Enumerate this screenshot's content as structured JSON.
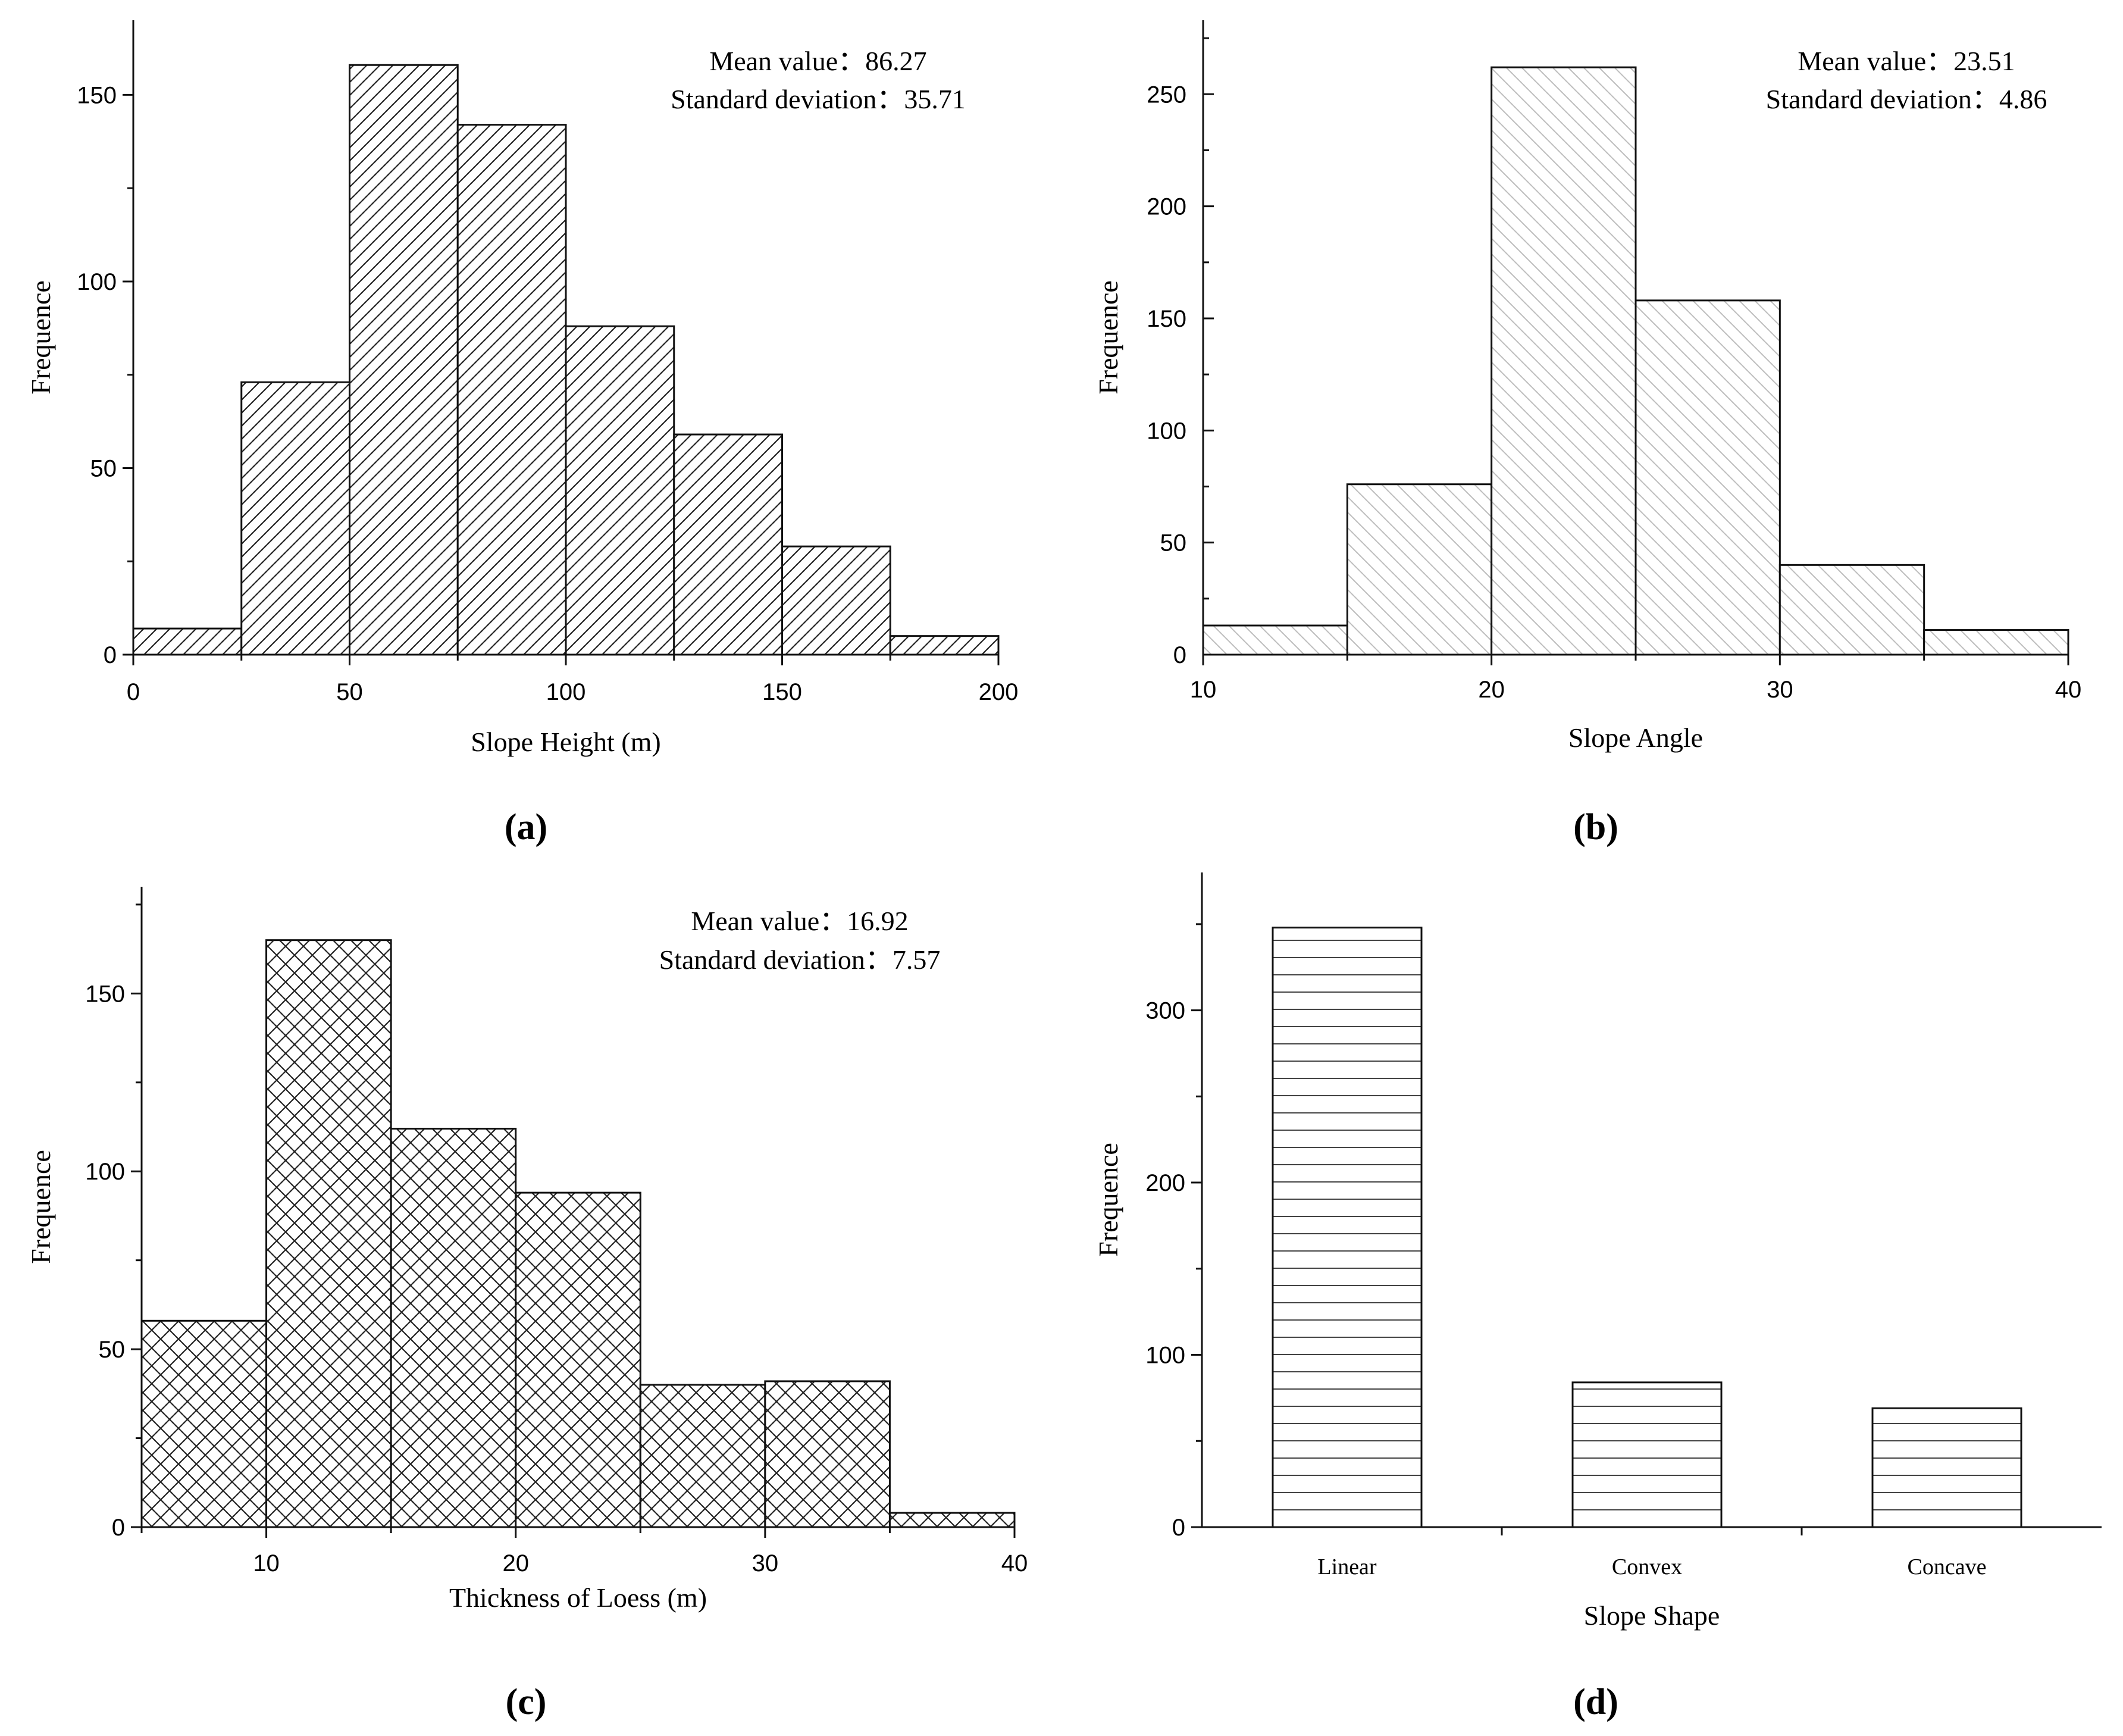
{
  "figure_labels": [
    "(a)",
    "(b)",
    "(c)",
    "(d)"
  ],
  "chart_data": [
    {
      "id": "a",
      "type": "bar",
      "histogram": true,
      "pattern": "hatch-forward",
      "ylabel": "Frequence",
      "xlabel": "Slope Height (m)",
      "bins": [
        [
          0,
          25
        ],
        [
          25,
          50
        ],
        [
          50,
          75
        ],
        [
          75,
          100
        ],
        [
          100,
          125
        ],
        [
          125,
          150
        ],
        [
          150,
          175
        ],
        [
          175,
          200
        ]
      ],
      "values": [
        7,
        73,
        158,
        142,
        88,
        59,
        29,
        5
      ],
      "xlim": [
        0,
        200
      ],
      "ylim": [
        0,
        170
      ],
      "xticks": [
        0,
        50,
        100,
        150,
        200
      ],
      "yticks": [
        0,
        50,
        100,
        150
      ],
      "stats": [
        "Mean value：86.27",
        "Standard deviation：35.71"
      ]
    },
    {
      "id": "b",
      "type": "bar",
      "histogram": true,
      "pattern": "hatch-backward",
      "ylabel": "Frequence",
      "xlabel": "Slope Angle",
      "bins": [
        [
          10,
          15
        ],
        [
          15,
          20
        ],
        [
          20,
          25
        ],
        [
          25,
          30
        ],
        [
          30,
          35
        ],
        [
          35,
          40
        ]
      ],
      "values": [
        13,
        76,
        262,
        158,
        40,
        11
      ],
      "xlim": [
        10,
        40
      ],
      "ylim": [
        0,
        283
      ],
      "xticks": [
        10,
        20,
        30,
        40
      ],
      "yticks": [
        0,
        50,
        100,
        150,
        200,
        250
      ],
      "stats": [
        "Mean value：23.51",
        "Standard deviation：4.86"
      ]
    },
    {
      "id": "c",
      "type": "bar",
      "histogram": true,
      "pattern": "crosshatch",
      "ylabel": "Frequence",
      "xlabel": "Thickness of Loess (m)",
      "bins": [
        [
          5,
          10
        ],
        [
          10,
          15
        ],
        [
          15,
          20
        ],
        [
          20,
          25
        ],
        [
          25,
          30
        ],
        [
          30,
          35
        ],
        [
          35,
          40
        ]
      ],
      "values": [
        58,
        165,
        112,
        94,
        40,
        41,
        4
      ],
      "xlim": [
        5,
        40
      ],
      "ylim": [
        0,
        180
      ],
      "xticks": [
        10,
        20,
        30,
        40
      ],
      "yticks": [
        0,
        50,
        100,
        150
      ],
      "stats": [
        "Mean value：16.92",
        "Standard deviation：7.57"
      ]
    },
    {
      "id": "d",
      "type": "bar",
      "pattern": "horizontal",
      "ylabel": "Frequence",
      "xlabel": "Slope Shape",
      "categories": [
        "Linear",
        "Convex",
        "Concave"
      ],
      "values": [
        348,
        84,
        69
      ],
      "ylim": [
        0,
        380
      ],
      "yticks": [
        0,
        100,
        200,
        300
      ]
    }
  ]
}
